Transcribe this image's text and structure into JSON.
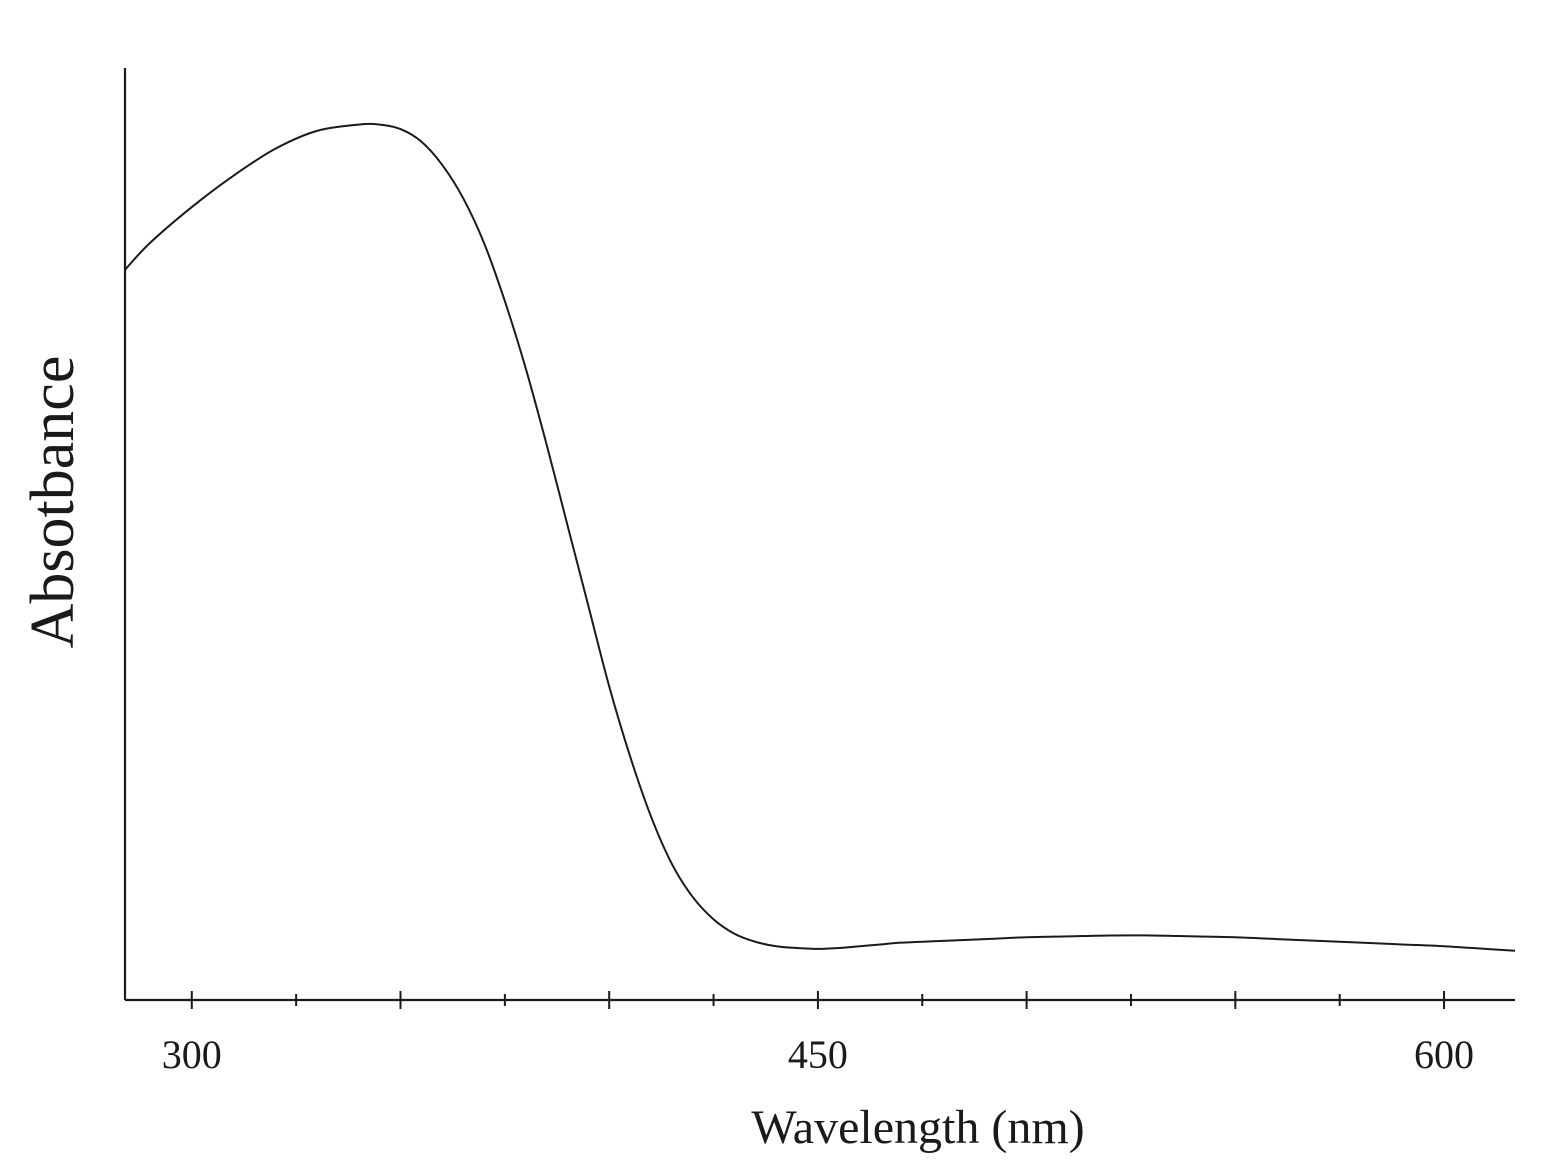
{
  "chart_data": {
    "type": "line",
    "title": "",
    "xlabel": "Wavelength (nm)",
    "ylabel": "Absotbance",
    "xlim": [
      284,
      617
    ],
    "ylim": [
      0,
      1
    ],
    "x_ticks_labeled": [
      300,
      450,
      600
    ],
    "x_tick_labels": [
      "300",
      "450",
      "600"
    ],
    "x_major_ticks": [
      300,
      350,
      400,
      450,
      500,
      550,
      600
    ],
    "x_minor_ticks": [
      325,
      375,
      425,
      475,
      525,
      575
    ],
    "y_ticks": [],
    "grid": false,
    "legend": "none",
    "series": [
      {
        "color": "#1a1a1a",
        "x": [
          284,
          290,
          300,
          310,
          320,
          330,
          340,
          345,
          350,
          355,
          360,
          365,
          370,
          375,
          380,
          385,
          390,
          395,
          400,
          405,
          410,
          415,
          420,
          425,
          430,
          435,
          440,
          445,
          450,
          455,
          460,
          465,
          470,
          480,
          490,
          500,
          510,
          520,
          530,
          540,
          550,
          560,
          570,
          580,
          590,
          600,
          610,
          617
        ],
        "y": [
          0.815,
          0.845,
          0.885,
          0.92,
          0.95,
          0.97,
          0.977,
          0.977,
          0.972,
          0.958,
          0.932,
          0.895,
          0.845,
          0.78,
          0.705,
          0.62,
          0.53,
          0.44,
          0.35,
          0.272,
          0.205,
          0.152,
          0.115,
          0.09,
          0.074,
          0.065,
          0.06,
          0.058,
          0.057,
          0.058,
          0.06,
          0.062,
          0.064,
          0.066,
          0.068,
          0.07,
          0.071,
          0.072,
          0.072,
          0.071,
          0.07,
          0.068,
          0.066,
          0.064,
          0.062,
          0.06,
          0.057,
          0.055
        ]
      }
    ]
  }
}
